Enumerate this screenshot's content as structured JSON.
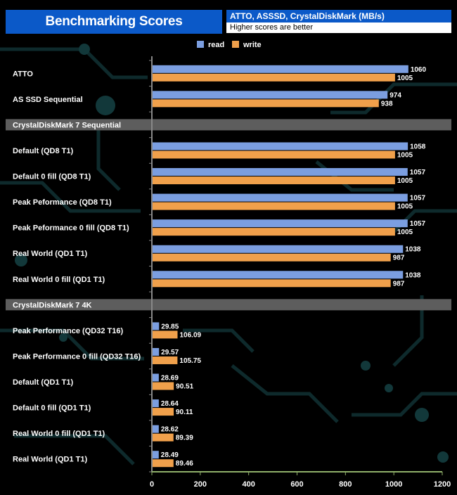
{
  "header": {
    "title": "Benchmarking Scores",
    "subtitle": "ATTO, ASSSD, CrystalDiskMark (MB/s)",
    "note": "Higher scores are better"
  },
  "chart_data": {
    "type": "bar",
    "orientation": "horizontal",
    "xlim": [
      0,
      1200
    ],
    "xticks": [
      0,
      200,
      400,
      600,
      800,
      1000,
      1200
    ],
    "legend_position": "top-center",
    "series": [
      {
        "name": "read",
        "color": "#7b9ee0"
      },
      {
        "name": "write",
        "color": "#f0a04b"
      }
    ],
    "rows": [
      {
        "kind": "bar",
        "label": "ATTO",
        "read": 1060,
        "write": 1005,
        "read_label": "1060",
        "write_label": "1005"
      },
      {
        "kind": "bar",
        "label": "AS SSD Sequential",
        "read": 974,
        "write": 938,
        "read_label": "974",
        "write_label": "938"
      },
      {
        "kind": "section",
        "label": "CrystalDiskMark 7 Sequential"
      },
      {
        "kind": "bar",
        "label": "Default (QD8 T1)",
        "read": 1058,
        "write": 1005,
        "read_label": "1058",
        "write_label": "1005"
      },
      {
        "kind": "bar",
        "label": "Default 0 fill (QD8 T1)",
        "read": 1057,
        "write": 1005,
        "read_label": "1057",
        "write_label": "1005"
      },
      {
        "kind": "bar",
        "label": "Peak Peformance (QD8 T1)",
        "read": 1057,
        "write": 1005,
        "read_label": "1057",
        "write_label": "1005"
      },
      {
        "kind": "bar",
        "label": "Peak Peformance 0 fill (QD8 T1)",
        "read": 1057,
        "write": 1005,
        "read_label": "1057",
        "write_label": "1005"
      },
      {
        "kind": "bar",
        "label": "Real World (QD1 T1)",
        "read": 1038,
        "write": 987,
        "read_label": "1038",
        "write_label": "987"
      },
      {
        "kind": "bar",
        "label": "Real World 0 fill (QD1 T1)",
        "read": 1038,
        "write": 987,
        "read_label": "1038",
        "write_label": "987"
      },
      {
        "kind": "section",
        "label": "CrystalDiskMark 7 4K"
      },
      {
        "kind": "bar",
        "label": "Peak Performance (QD32 T16)",
        "read": 29.85,
        "write": 106.09,
        "read_label": "29.85",
        "write_label": "106.09"
      },
      {
        "kind": "bar",
        "label": "Peak Performance 0 fill (QD32 T16)",
        "read": 29.57,
        "write": 105.75,
        "read_label": "29.57",
        "write_label": "105.75"
      },
      {
        "kind": "bar",
        "label": "Default (QD1 T1)",
        "read": 28.69,
        "write": 90.51,
        "read_label": "28.69",
        "write_label": "90.51"
      },
      {
        "kind": "bar",
        "label": "Default 0 fill (QD1 T1)",
        "read": 28.64,
        "write": 90.11,
        "read_label": "28.64",
        "write_label": "90.11"
      },
      {
        "kind": "bar",
        "label": "Real World 0 fill  (QD1 T1)",
        "read": 28.62,
        "write": 89.39,
        "read_label": "28.62",
        "write_label": "89.39"
      },
      {
        "kind": "bar",
        "label": "Real World  (QD1 T1)",
        "read": 28.49,
        "write": 89.46,
        "read_label": "28.49",
        "write_label": "89.46"
      }
    ]
  }
}
